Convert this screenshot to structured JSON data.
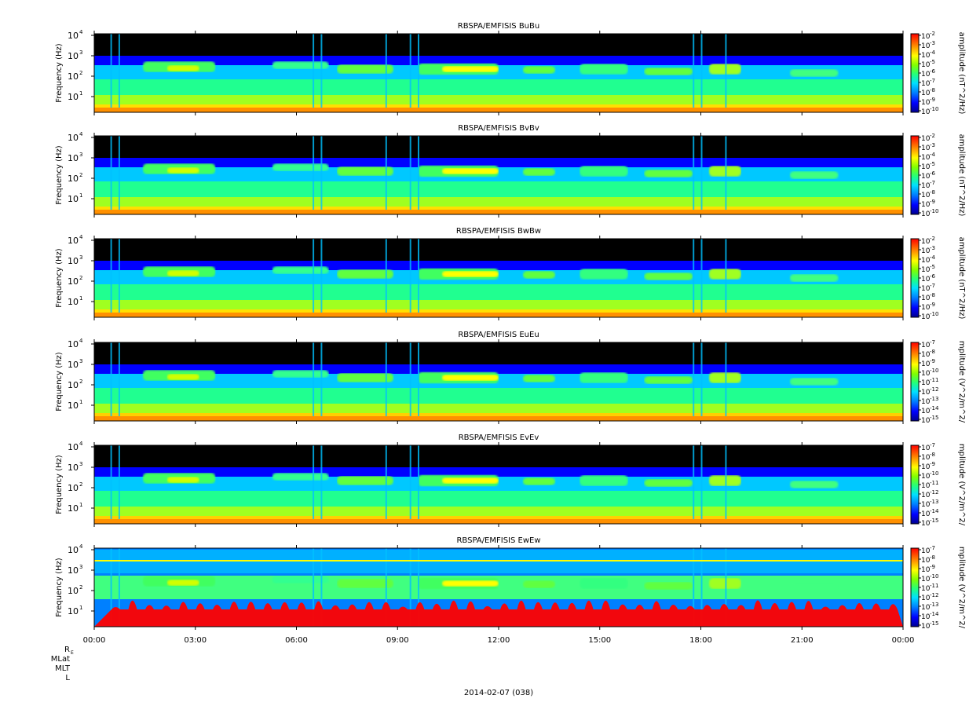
{
  "chart_data": {
    "type": "heatmap",
    "panels": [
      {
        "title": "RBSPA/EMFISIS  BuBu",
        "ylabel": "Frequency (Hz)",
        "yticks": [
          "10",
          "10",
          "10",
          "10"
        ],
        "yexp": [
          "1",
          "2",
          "3",
          "4"
        ],
        "zlabel": "amplitude (nT^2/Hz)",
        "zticks": [
          "10",
          "10",
          "10",
          "10",
          "10",
          "10",
          "10",
          "10",
          "10"
        ],
        "zexp": [
          "-2",
          "-3",
          "-4",
          "-5",
          "-6",
          "-7",
          "-8",
          "-9",
          "-10"
        ],
        "field": "magnetic"
      },
      {
        "title": "RBSPA/EMFISIS  BvBv",
        "ylabel": "Frequency (Hz)",
        "yticks": [
          "10",
          "10",
          "10",
          "10"
        ],
        "yexp": [
          "1",
          "2",
          "3",
          "4"
        ],
        "zlabel": "amplitude (nT^2/Hz)",
        "zticks": [
          "10",
          "10",
          "10",
          "10",
          "10",
          "10",
          "10",
          "10",
          "10"
        ],
        "zexp": [
          "-2",
          "-3",
          "-4",
          "-5",
          "-6",
          "-7",
          "-8",
          "-9",
          "-10"
        ],
        "field": "magnetic"
      },
      {
        "title": "RBSPA/EMFISIS  BwBw",
        "ylabel": "Frequency (Hz)",
        "yticks": [
          "10",
          "10",
          "10",
          "10"
        ],
        "yexp": [
          "1",
          "2",
          "3",
          "4"
        ],
        "zlabel": "amplitude (nT^2/Hz)",
        "zticks": [
          "10",
          "10",
          "10",
          "10",
          "10",
          "10",
          "10",
          "10",
          "10"
        ],
        "zexp": [
          "-2",
          "-3",
          "-4",
          "-5",
          "-6",
          "-7",
          "-8",
          "-9",
          "-10"
        ],
        "field": "magnetic"
      },
      {
        "title": "RBSPA/EMFISIS  EuEu",
        "ylabel": "Frequency (Hz)",
        "yticks": [
          "10",
          "10",
          "10",
          "10"
        ],
        "yexp": [
          "1",
          "2",
          "3",
          "4"
        ],
        "zlabel": "mplitude (V^2/m^2/",
        "zticks": [
          "10",
          "10",
          "10",
          "10",
          "10",
          "10",
          "10",
          "10",
          "10"
        ],
        "zexp": [
          "-7",
          "-8",
          "-9",
          "-10",
          "-11",
          "-12",
          "-13",
          "-14",
          "-15"
        ],
        "field": "electric"
      },
      {
        "title": "RBSPA/EMFISIS  EvEv",
        "ylabel": "Frequency (Hz)",
        "yticks": [
          "10",
          "10",
          "10",
          "10"
        ],
        "yexp": [
          "1",
          "2",
          "3",
          "4"
        ],
        "zlabel": "mplitude (V^2/m^2/",
        "zticks": [
          "10",
          "10",
          "10",
          "10",
          "10",
          "10",
          "10",
          "10",
          "10"
        ],
        "zexp": [
          "-7",
          "-8",
          "-9",
          "-10",
          "-11",
          "-12",
          "-13",
          "-14",
          "-15"
        ],
        "field": "electric"
      },
      {
        "title": "RBSPA/EMFISIS  EwEw",
        "ylabel": "Frequency (Hz)",
        "yticks": [
          "10",
          "10",
          "10",
          "10"
        ],
        "yexp": [
          "1",
          "2",
          "3",
          "4"
        ],
        "zlabel": "mplitude (V^2/m^2/",
        "zticks": [
          "10",
          "10",
          "10",
          "10",
          "10",
          "10",
          "10",
          "10",
          "10"
        ],
        "zexp": [
          "-7",
          "-8",
          "-9",
          "-10",
          "-11",
          "-12",
          "-13",
          "-14",
          "-15"
        ],
        "field": "electric_ew"
      }
    ],
    "xticks": [
      "00:00",
      "03:00",
      "06:00",
      "09:00",
      "12:00",
      "15:00",
      "18:00",
      "21:00",
      "00:00"
    ],
    "ephemeris_labels": [
      "R",
      "MLat",
      "MLT",
      "L"
    ],
    "ephemeris_sub": "E",
    "xlabel": "2014-02-07 (038)",
    "colors": {
      "background": "#000000",
      "axes": "#000000",
      "colormap": [
        "#00008f",
        "#0000ff",
        "#00a0ff",
        "#00ffe0",
        "#30ff60",
        "#a0ff00",
        "#ffff00",
        "#ffa000",
        "#ff2000",
        "#c00000"
      ]
    }
  }
}
